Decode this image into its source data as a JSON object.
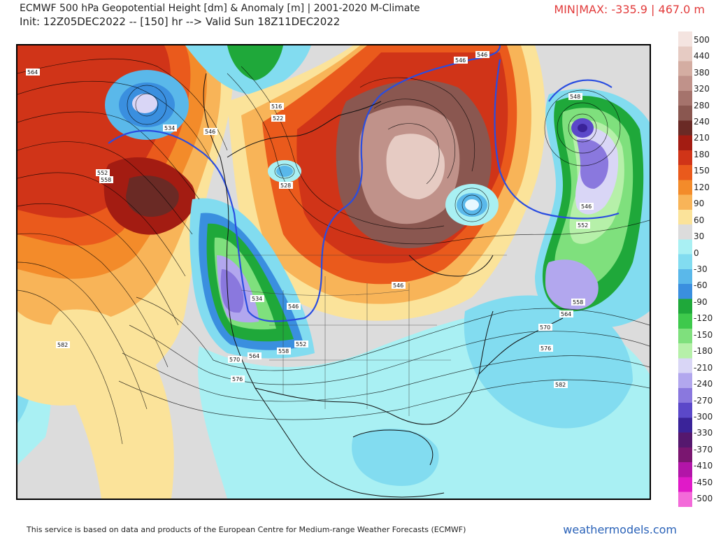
{
  "header": {
    "title": "ECMWF 500 hPa Geopotential Height [dm] & Anomaly [m] | 2001-2020 M-Climate",
    "subtitle": "Init: 12Z05DEC2022 -- [150] hr --> Valid Sun 18Z11DEC2022",
    "minmax": "MIN|MAX: -335.9 | 467.0 m"
  },
  "colorbar": {
    "labels": [
      "500",
      "440",
      "380",
      "320",
      "280",
      "240",
      "210",
      "180",
      "150",
      "120",
      "90",
      "60",
      "30",
      "0",
      "-30",
      "-60",
      "-90",
      "-120",
      "-150",
      "-180",
      "-210",
      "-240",
      "-270",
      "-300",
      "-330",
      "-370",
      "-410",
      "-450",
      "-500"
    ],
    "colors": [
      "#f4e4e0",
      "#e6cbc3",
      "#d4ada2",
      "#c0928a",
      "#a5736c",
      "#8a5750",
      "#6a2a25",
      "#a31c12",
      "#d03418",
      "#ea5a1c",
      "#f38b2a",
      "#f8b458",
      "#fbe39a",
      "#dcdcdc",
      "#a9f0f3",
      "#82dcf0",
      "#5ab8ea",
      "#3a8fdf",
      "#1fa83a",
      "#3ec94c",
      "#7fe07d",
      "#b6f0a9",
      "#d9d6f6",
      "#b2a7ee",
      "#8a78de",
      "#5b48c9",
      "#3a2399",
      "#55186e",
      "#7a1670",
      "#b215a8",
      "#e01ac8",
      "#f36ad9"
    ]
  },
  "map": {
    "contour_labels": [
      {
        "text": "564"
      },
      {
        "text": "534"
      },
      {
        "text": "546"
      },
      {
        "text": "552"
      },
      {
        "text": "558"
      },
      {
        "text": "516"
      },
      {
        "text": "522"
      },
      {
        "text": "528"
      },
      {
        "text": "546"
      },
      {
        "text": "546"
      },
      {
        "text": "548"
      },
      {
        "text": "546"
      },
      {
        "text": "552"
      },
      {
        "text": "558"
      },
      {
        "text": "564"
      },
      {
        "text": "570"
      },
      {
        "text": "576"
      },
      {
        "text": "582"
      },
      {
        "text": "582"
      },
      {
        "text": "534"
      },
      {
        "text": "546"
      },
      {
        "text": "552"
      },
      {
        "text": "558"
      },
      {
        "text": "564"
      },
      {
        "text": "570"
      },
      {
        "text": "576"
      },
      {
        "text": "546"
      }
    ]
  },
  "footer": {
    "credit": "This service is based on data and products of the European Centre for Medium-range Weather Forecasts (ECMWF)",
    "brand": "weathermodels.com"
  }
}
